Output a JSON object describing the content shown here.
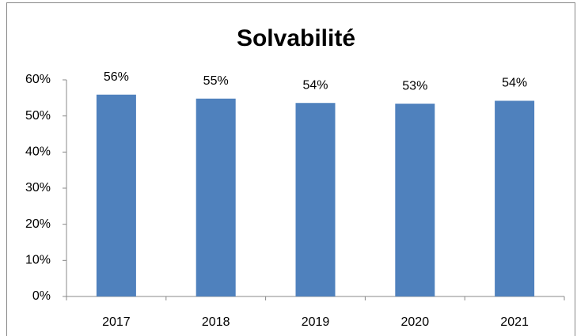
{
  "chart_data": {
    "type": "bar",
    "title": "Solvabilité",
    "categories": [
      "2017",
      "2018",
      "2019",
      "2020",
      "2021"
    ],
    "values": [
      55.9,
      54.8,
      53.6,
      53.4,
      54.2
    ],
    "value_labels": [
      "56%",
      "55%",
      "54%",
      "53%",
      "54%"
    ],
    "color": "#4f81bd",
    "ylim": [
      0,
      60
    ],
    "yticks": [
      {
        "value": 0,
        "label": "0%"
      },
      {
        "value": 10,
        "label": "10%"
      },
      {
        "value": 20,
        "label": "20%"
      },
      {
        "value": 30,
        "label": "30%"
      },
      {
        "value": 40,
        "label": "40%"
      },
      {
        "value": 50,
        "label": "50%"
      },
      {
        "value": 60,
        "label": "60%"
      }
    ],
    "grid": false
  }
}
